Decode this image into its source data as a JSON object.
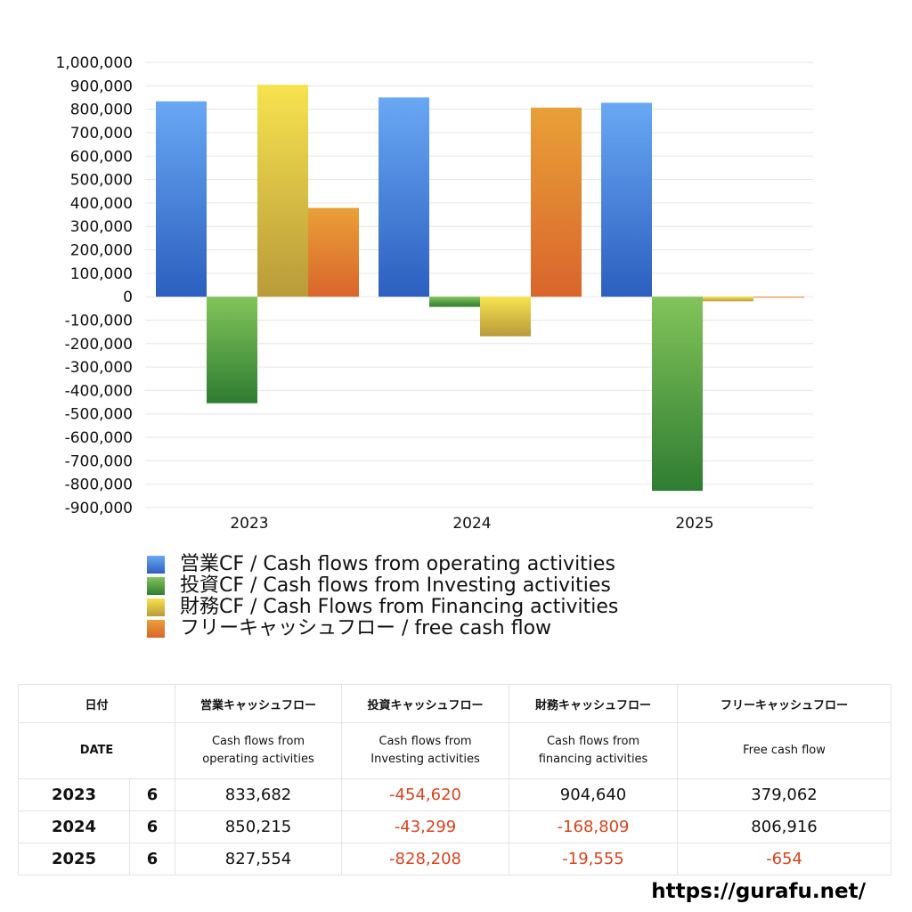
{
  "chart_data": {
    "type": "bar",
    "categories": [
      "2023",
      "2024",
      "2025"
    ],
    "series": [
      {
        "name": "営業CF / Cash flows from operating activities",
        "values": [
          833682,
          850215,
          827554
        ]
      },
      {
        "name": "投資CF / Cash flows from Investing activities",
        "values": [
          -454620,
          -43299,
          -828208
        ]
      },
      {
        "name": "財務CF / Cash Flows from Financing activities",
        "values": [
          904640,
          -168809,
          -19555
        ]
      },
      {
        "name": "フリーキャッシュフロー / free cash flow",
        "values": [
          379062,
          806916,
          -654
        ]
      }
    ],
    "colors": [
      "#3a7ad8",
      "#4aa03c",
      "#e8cf3f",
      "#e0762c"
    ],
    "ylim": [
      -900000,
      1000000
    ],
    "yticks": [
      "1,000,000",
      "900,000",
      "800,000",
      "700,000",
      "600,000",
      "500,000",
      "400,000",
      "300,000",
      "200,000",
      "100,000",
      "0",
      "-100,000",
      "-200,000",
      "-300,000",
      "-400,000",
      "-500,000",
      "-600,000",
      "-700,000",
      "-800,000",
      "-900,000"
    ],
    "grid": true,
    "legend": "bottom"
  },
  "table": {
    "header1": [
      "日付",
      "営業キャッシュフロー",
      "投資キャッシュフロー",
      "財務キャッシュフロー",
      "フリーキャッシュフロー"
    ],
    "header2": {
      "date": "DATE",
      "operating": [
        "Cash flows from",
        "operating activities"
      ],
      "investing": [
        "Cash flows from",
        "Investing activities"
      ],
      "financing": [
        "Cash flows from",
        "financing activities"
      ],
      "free": "Free cash flow"
    },
    "rows": [
      {
        "year": "2023",
        "month": "6",
        "operating": "833,682",
        "investing": "-454,620",
        "financing": "904,640",
        "free": "379,062"
      },
      {
        "year": "2024",
        "month": "6",
        "operating": "850,215",
        "investing": "-43,299",
        "financing": "-168,809",
        "free": "806,916"
      },
      {
        "year": "2025",
        "month": "6",
        "operating": "827,554",
        "investing": "-828,208",
        "financing": "-19,555",
        "free": "-654"
      }
    ]
  },
  "watermark": "https://gurafu.net/"
}
